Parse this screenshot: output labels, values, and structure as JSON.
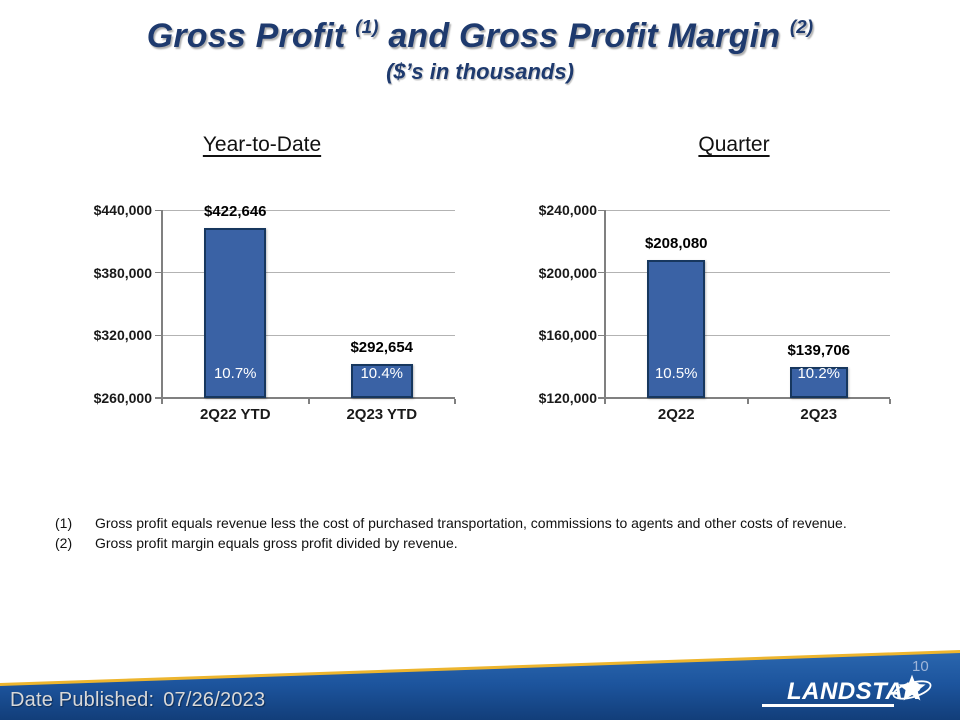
{
  "title": {
    "part1": "Gross Profit ",
    "sup1": "(1)",
    "part2": " and Gross Profit Margin ",
    "sup2": "(2)",
    "subtitle": "($’s in thousands)"
  },
  "sections": {
    "left_header": "Year-to-Date",
    "right_header": "Quarter"
  },
  "chart_data": [
    {
      "type": "bar",
      "title": "Year-to-Date",
      "categories": [
        "2Q22 YTD",
        "2Q23 YTD"
      ],
      "values": [
        422646,
        292654
      ],
      "value_labels": [
        "$422,646",
        "$292,654"
      ],
      "pct_labels": [
        "10.7%",
        "10.4%"
      ],
      "ylabel": "",
      "xlabel": "",
      "ylim": [
        260000,
        440000
      ],
      "yticks": [
        440000,
        380000,
        320000,
        260000
      ],
      "ytick_labels": [
        "$440,000",
        "$380,000",
        "$320,000",
        "$260,000"
      ],
      "grid": true,
      "legend_position": "none",
      "bar_color": "#3a62a5",
      "bar_border": "#17375e"
    },
    {
      "type": "bar",
      "title": "Quarter",
      "categories": [
        "2Q22",
        "2Q23"
      ],
      "values": [
        208080,
        139706
      ],
      "value_labels": [
        "$208,080",
        "$139,706"
      ],
      "pct_labels": [
        "10.5%",
        "10.2%"
      ],
      "ylabel": "",
      "xlabel": "",
      "ylim": [
        120000,
        240000
      ],
      "yticks": [
        240000,
        200000,
        160000,
        120000
      ],
      "ytick_labels": [
        "$240,000",
        "$200,000",
        "$160,000",
        "$120,000"
      ],
      "grid": true,
      "legend_position": "none",
      "bar_color": "#3a62a5",
      "bar_border": "#17375e"
    }
  ],
  "footnotes": [
    {
      "marker": "(1)",
      "text": "Gross profit equals revenue less the cost of purchased transportation, commissions to agents and other costs of revenue."
    },
    {
      "marker": "(2)",
      "text": "Gross profit margin equals gross profit divided by revenue."
    }
  ],
  "footer": {
    "date_label": "Date Published:",
    "date_value": "07/26/2023",
    "page_number": "10",
    "logo_text": "LANDSTAR",
    "band_blue_top": "#2a66ae",
    "band_blue_mid": "#1d559e",
    "band_blue_bottom": "#123e7a",
    "band_gold": "#edb52e"
  }
}
